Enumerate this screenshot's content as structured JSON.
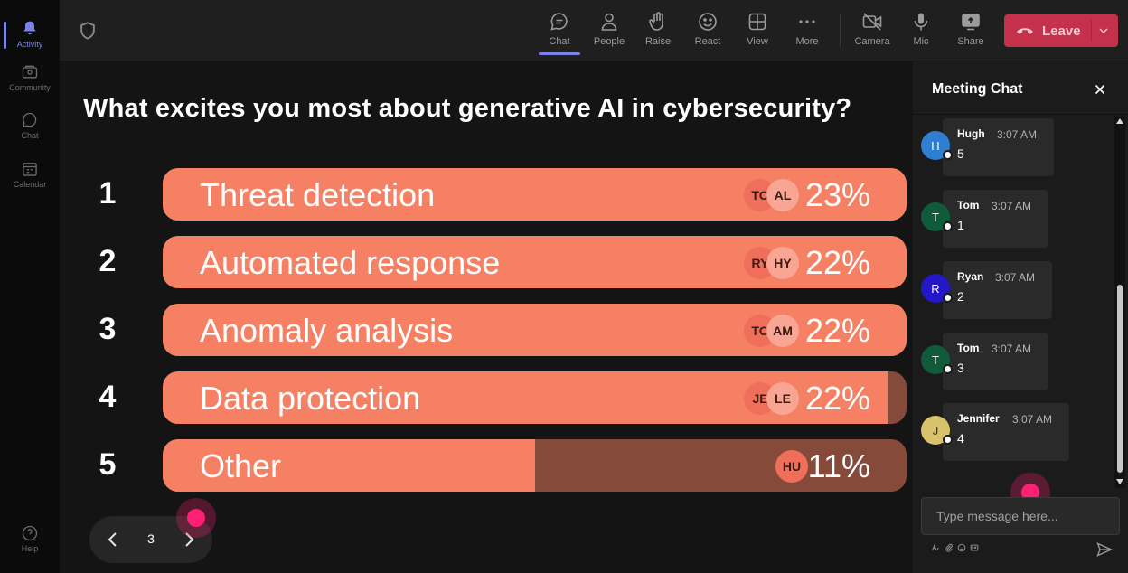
{
  "rail": {
    "items": [
      {
        "label": "Activity",
        "icon": "bell-icon"
      },
      {
        "label": "Community",
        "icon": "community-icon"
      },
      {
        "label": "Chat",
        "icon": "chat-icon"
      },
      {
        "label": "Calendar",
        "icon": "calendar-icon"
      }
    ],
    "help_label": "Help"
  },
  "toolbar": {
    "chat": "Chat",
    "people": "People",
    "raise": "Raise",
    "react": "React",
    "view": "View",
    "more": "More",
    "camera": "Camera",
    "mic": "Mic",
    "share": "Share",
    "leave": "Leave"
  },
  "poll": {
    "question": "What excites you most about generative AI in cybersecurity?",
    "options": [
      {
        "rank": "1",
        "label": "Threat detection",
        "percent": "23%",
        "fill": 1.0,
        "avatars": [
          "TO",
          "AL"
        ]
      },
      {
        "rank": "2",
        "label": "Automated response",
        "percent": "22%",
        "fill": 1.0,
        "avatars": [
          "RY",
          "HY"
        ]
      },
      {
        "rank": "3",
        "label": "Anomaly analysis",
        "percent": "22%",
        "fill": 1.0,
        "avatars": [
          "TO",
          "AM"
        ]
      },
      {
        "rank": "4",
        "label": "Data protection",
        "percent": "22%",
        "fill": 0.975,
        "avatars": [
          "JE",
          "LE"
        ]
      },
      {
        "rank": "5",
        "label": "Other",
        "percent": "11%",
        "fill": 0.5,
        "avatars": [
          "HU"
        ]
      }
    ],
    "page": "3"
  },
  "chat": {
    "title": "Meeting Chat",
    "messages": [
      {
        "initial": "H",
        "name": "Hugh",
        "time": "3:07 AM",
        "text": "5",
        "color": "#2f7fd0"
      },
      {
        "initial": "T",
        "name": "Tom",
        "time": "3:07 AM",
        "text": "1",
        "color": "#0f5b3a"
      },
      {
        "initial": "R",
        "name": "Ryan",
        "time": "3:07 AM",
        "text": "2",
        "color": "#2417c8"
      },
      {
        "initial": "T",
        "name": "Tom",
        "time": "3:07 AM",
        "text": "3",
        "color": "#0f5b3a"
      },
      {
        "initial": "J",
        "name": "Jennifer",
        "time": "3:07 AM",
        "text": "4",
        "color": "#d8c36a"
      }
    ],
    "compose_placeholder": "Type message here..."
  },
  "colors": {
    "bar_fill": "#f58064",
    "bar_track": "#864a3b",
    "leave_button": "#c4314b",
    "accent": "#7b83eb",
    "cursor": "#ff1f73"
  }
}
